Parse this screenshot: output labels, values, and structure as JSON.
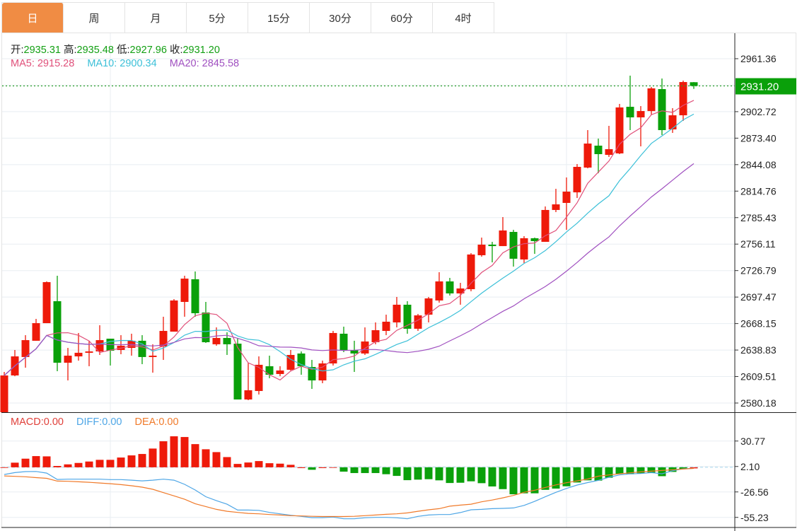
{
  "tabs": [
    {
      "label": "日",
      "active": true
    },
    {
      "label": "周"
    },
    {
      "label": "月"
    },
    {
      "label": "5分"
    },
    {
      "label": "15分"
    },
    {
      "label": "30分"
    },
    {
      "label": "60分"
    },
    {
      "label": "4时"
    }
  ],
  "ohlc_legend": {
    "open_label": "开:",
    "open": "2935.31",
    "high_label": "高:",
    "high": "2935.48",
    "low_label": "低:",
    "low": "2927.96",
    "close_label": "收:",
    "close": "2931.20"
  },
  "ma_legend": {
    "ma5": "MA5: 2915.28",
    "ma10": "MA10: 2900.34",
    "ma20": "MA20: 2845.58"
  },
  "macd_legend": {
    "macd": "MACD:0.00",
    "diff": "DIFF:0.00",
    "dea": "DEA:0.00"
  },
  "current_price": "2931.20",
  "colors": {
    "up": "#ee1a0a",
    "down": "#0aa00a",
    "ma5": "#e0507a",
    "ma10": "#3cc0d8",
    "ma20": "#a050c0",
    "diff": "#4ea6e6",
    "dea": "#f07a2a",
    "tab_active": "#f08c44"
  },
  "chart_data": [
    {
      "type": "candlestick",
      "title": "",
      "price_ticks": [
        "2961.36",
        "2902.72",
        "2873.40",
        "2844.08",
        "2814.76",
        "2785.43",
        "2756.11",
        "2726.79",
        "2697.47",
        "2668.15",
        "2638.83",
        "2609.51",
        "2580.18"
      ],
      "ylim": [
        2580.18,
        2961.36
      ],
      "grid": true,
      "ma_periods": [
        5,
        10,
        20
      ],
      "ohlc": [
        [
          2570.0,
          2614.6,
          2570.0,
          2610.7
        ],
        [
          2610.7,
          2638.9,
          2609.9,
          2631.8
        ],
        [
          2631.1,
          2655.3,
          2619.3,
          2649.8
        ],
        [
          2649.1,
          2673.3,
          2649.1,
          2668.6
        ],
        [
          2668.6,
          2714.8,
          2668.6,
          2714.0
        ],
        [
          2692.9,
          2721.1,
          2615.4,
          2624.8
        ],
        [
          2624.8,
          2641.2,
          2605.2,
          2632.6
        ],
        [
          2631.8,
          2657.7,
          2627.1,
          2635.8
        ],
        [
          2635.8,
          2649.1,
          2620.9,
          2637.3
        ],
        [
          2637.3,
          2666.3,
          2633.4,
          2649.8
        ],
        [
          2651.4,
          2651.4,
          2621.7,
          2638.1
        ],
        [
          2638.9,
          2655.3,
          2634.2,
          2643.6
        ],
        [
          2641.2,
          2656.9,
          2632.6,
          2649.1
        ],
        [
          2649.1,
          2655.3,
          2623.2,
          2631.1
        ],
        [
          2631.1,
          2645.2,
          2613.8,
          2632.6
        ],
        [
          2642.8,
          2675.7,
          2627.9,
          2660.0
        ],
        [
          2659.2,
          2695.2,
          2659.2,
          2693.7
        ],
        [
          2692.1,
          2721.1,
          2675.7,
          2717.9
        ],
        [
          2717.2,
          2725.8,
          2675.7,
          2679.6
        ],
        [
          2680.4,
          2692.1,
          2646.7,
          2647.5
        ],
        [
          2645.2,
          2663.9,
          2643.6,
          2652.2
        ],
        [
          2652.2,
          2658.5,
          2633.4,
          2645.2
        ],
        [
          2645.9,
          2652.2,
          2584.1,
          2584.1
        ],
        [
          2584.1,
          2624.8,
          2583.3,
          2594.3
        ],
        [
          2593.5,
          2631.8,
          2589.6,
          2622.5
        ],
        [
          2620.9,
          2632.6,
          2607.6,
          2611.5
        ],
        [
          2612.3,
          2620.9,
          2609.9,
          2616.2
        ],
        [
          2617.0,
          2638.9,
          2616.2,
          2633.4
        ],
        [
          2635.0,
          2637.3,
          2611.5,
          2620.9
        ],
        [
          2620.1,
          2627.9,
          2595.8,
          2605.2
        ],
        [
          2605.2,
          2627.1,
          2602.1,
          2624.0
        ],
        [
          2624.0,
          2660.0,
          2621.7,
          2657.7
        ],
        [
          2656.9,
          2664.7,
          2636.5,
          2638.9
        ],
        [
          2638.9,
          2649.1,
          2614.6,
          2635.0
        ],
        [
          2635.0,
          2663.9,
          2633.4,
          2648.3
        ],
        [
          2647.5,
          2669.4,
          2645.2,
          2660.8
        ],
        [
          2660.0,
          2678.0,
          2655.3,
          2670.2
        ],
        [
          2669.4,
          2697.6,
          2663.9,
          2689.0
        ],
        [
          2689.0,
          2692.9,
          2656.9,
          2662.4
        ],
        [
          2662.4,
          2678.8,
          2660.0,
          2677.2
        ],
        [
          2678.0,
          2697.6,
          2669.4,
          2696.0
        ],
        [
          2693.7,
          2725.0,
          2691.3,
          2714.8
        ],
        [
          2714.8,
          2718.7,
          2699.2,
          2701.5
        ],
        [
          2701.5,
          2713.2,
          2689.0,
          2707.0
        ],
        [
          2706.2,
          2746.1,
          2703.9,
          2744.6
        ],
        [
          2743.8,
          2763.3,
          2742.2,
          2755.5
        ],
        [
          2755.5,
          2758.6,
          2735.9,
          2753.9
        ],
        [
          2753.9,
          2786.0,
          2753.9,
          2771.2
        ],
        [
          2769.6,
          2771.9,
          2731.2,
          2739.9
        ],
        [
          2739.1,
          2764.9,
          2735.2,
          2762.6
        ],
        [
          2762.6,
          2763.3,
          2745.3,
          2759.4
        ],
        [
          2758.6,
          2797.8,
          2758.6,
          2793.9
        ],
        [
          2793.9,
          2817.3,
          2791.5,
          2800.1
        ],
        [
          2801.7,
          2829.9,
          2771.9,
          2814.2
        ],
        [
          2813.4,
          2844.7,
          2807.2,
          2841.6
        ],
        [
          2840.8,
          2882.3,
          2840.0,
          2867.4
        ],
        [
          2865.1,
          2872.9,
          2834.6,
          2855.7
        ],
        [
          2854.9,
          2887.0,
          2852.6,
          2861.2
        ],
        [
          2856.5,
          2911.3,
          2855.7,
          2907.4
        ],
        [
          2908.1,
          2942.6,
          2882.3,
          2896.4
        ],
        [
          2896.4,
          2908.9,
          2864.3,
          2903.4
        ],
        [
          2903.4,
          2930.1,
          2899.5,
          2928.5
        ],
        [
          2927.7,
          2939.4,
          2876.8,
          2882.3
        ],
        [
          2883.1,
          2906.6,
          2879.2,
          2898.7
        ],
        [
          2898.7,
          2937.1,
          2892.5,
          2935.5
        ],
        [
          2935.31,
          2935.48,
          2927.96,
          2931.2
        ]
      ]
    },
    {
      "type": "bar+line",
      "title": "MACD",
      "ticks": [
        "30.77",
        "2.10",
        "-26.56",
        "-55.23"
      ],
      "ylim": [
        -57,
        36
      ],
      "macd": [
        0.5,
        6.4,
        10.9,
        13.8,
        13.5,
        2.7,
        4.5,
        6.1,
        7.7,
        9.6,
        9.6,
        12.2,
        14.6,
        16.2,
        22.3,
        30.5,
        36.1,
        35.3,
        27.3,
        21.5,
        18.3,
        12.7,
        5.0,
        6.6,
        8.2,
        5.8,
        5.3,
        4.0,
        0.3,
        -1.6,
        0.3,
        0.8,
        -3.7,
        -5.3,
        -5.3,
        -5.3,
        -6.6,
        -8.5,
        -13.3,
        -12.7,
        -12.2,
        -13.5,
        -16.5,
        -16.2,
        -14.6,
        -16.7,
        -20.4,
        -23.4,
        -29.2,
        -28.1,
        -28.1,
        -24.2,
        -22.8,
        -20.2,
        -15.9,
        -13.5,
        -13.8,
        -10.6,
        -6.1,
        -6.6,
        -5.6,
        -5.3,
        -8.8,
        -4.0,
        -0.5,
        0
      ],
      "diff": [
        -6.9,
        -4.8,
        -3.7,
        -3.5,
        -5.3,
        -12.5,
        -12.2,
        -12.2,
        -12.2,
        -12.2,
        -12.7,
        -12.7,
        -13.3,
        -14.1,
        -13.3,
        -12.2,
        -13.3,
        -18.0,
        -24.4,
        -31.9,
        -36.4,
        -40.4,
        -47.0,
        -47.0,
        -47.3,
        -49.6,
        -51.2,
        -52.8,
        -54.1,
        -55.5,
        -55.5,
        -54.9,
        -56.8,
        -56.8,
        -55.7,
        -55.2,
        -55.2,
        -55.7,
        -56.8,
        -54.1,
        -52.6,
        -52.0,
        -52.0,
        -49.8,
        -46.7,
        -46.2,
        -45.4,
        -45.1,
        -44.6,
        -41.7,
        -37.2,
        -32.0,
        -27.0,
        -22.6,
        -18.8,
        -16.0,
        -13.5,
        -10.0,
        -7.4,
        -6.2,
        -5.8,
        -4.8,
        -6.1,
        -2.7,
        -0.5,
        0
      ],
      "dea": [
        -8.5,
        -9.0,
        -9.5,
        -10.4,
        -11.2,
        -14.3,
        -14.6,
        -15.1,
        -15.7,
        -16.5,
        -17.3,
        -18.3,
        -19.6,
        -21.2,
        -23.6,
        -27.3,
        -31.0,
        -34.8,
        -39.8,
        -43.0,
        -46.2,
        -48.3,
        -49.6,
        -50.7,
        -51.2,
        -52.0,
        -52.6,
        -53.3,
        -53.6,
        -54.0,
        -54.2,
        -54.2,
        -54.2,
        -54.0,
        -53.3,
        -52.6,
        -51.8,
        -51.2,
        -50.2,
        -48.3,
        -46.7,
        -45.4,
        -42.6,
        -41.4,
        -40.4,
        -37.7,
        -35.7,
        -33.2,
        -30.5,
        -27.0,
        -24.7,
        -21.5,
        -18.6,
        -16.2,
        -14.1,
        -12.0,
        -8.8,
        -7.4,
        -6.1,
        -5.0,
        -4.0,
        -3.2,
        -2.4,
        -1.6,
        -0.8,
        0
      ]
    }
  ]
}
